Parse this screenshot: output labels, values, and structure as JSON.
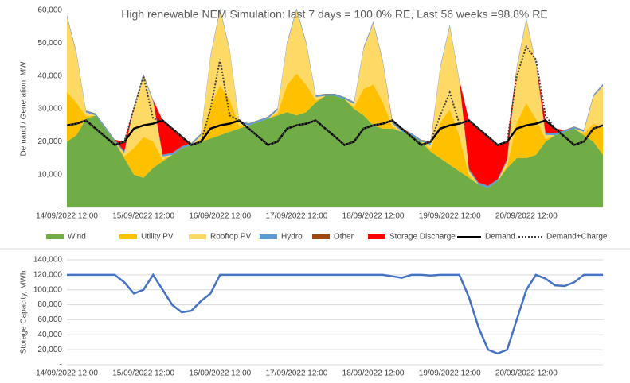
{
  "chart_data": [
    {
      "type": "area",
      "title": "High renewable NEM Simulation: last 7 days = 100.0% RE, Last 56 weeks =98.8% RE",
      "y_label": "Demand / Generation, MW",
      "categories": [
        "14/09/2022 12:00",
        null,
        null,
        null,
        null,
        null,
        null,
        null,
        "15/09/2022 12:00",
        null,
        null,
        null,
        null,
        null,
        null,
        null,
        "16/09/2022 12:00",
        null,
        null,
        null,
        null,
        null,
        null,
        null,
        "17/09/2022 12:00",
        null,
        null,
        null,
        null,
        null,
        null,
        null,
        "18/09/2022 12:00",
        null,
        null,
        null,
        null,
        null,
        null,
        null,
        "19/09/2022 12:00",
        null,
        null,
        null,
        null,
        null,
        null,
        null,
        "20/09/2022 12:00",
        null,
        null,
        null,
        null,
        null,
        null,
        null,
        null
      ],
      "ylim": [
        0,
        60000
      ],
      "yticks": [
        {
          "value": 0,
          "label": "-"
        },
        {
          "value": 10000,
          "label": "10,000"
        },
        {
          "value": 20000,
          "label": "20,000"
        },
        {
          "value": 30000,
          "label": "30,000"
        },
        {
          "value": 40000,
          "label": "40,000"
        },
        {
          "value": 50000,
          "label": "50,000"
        },
        {
          "value": 60000,
          "label": "60,000"
        }
      ],
      "grid": false,
      "series": [
        {
          "name": "Wind",
          "type": "area",
          "color": "#70ad47",
          "values": [
            20000,
            22000,
            27000,
            28000,
            24000,
            20000,
            15000,
            10000,
            9000,
            12000,
            14000,
            16000,
            18000,
            19000,
            20000,
            21000,
            22000,
            23000,
            24000,
            25000,
            26000,
            27000,
            28000,
            29000,
            28000,
            29000,
            32000,
            34000,
            34000,
            33000,
            30000,
            28000,
            25000,
            24000,
            24000,
            23000,
            22000,
            20000,
            17000,
            15000,
            13000,
            11000,
            9000,
            7000,
            6000,
            8000,
            12000,
            15000,
            15000,
            16000,
            20000,
            22000,
            23000,
            24000,
            22000,
            20000,
            16000
          ]
        },
        {
          "name": "Utility PV",
          "type": "area",
          "color": "#ffc000",
          "values": [
            15200,
            9900,
            800,
            0,
            0,
            0,
            600,
            8100,
            12400,
            8100,
            600,
            0,
            0,
            0,
            800,
            9900,
            15200,
            9900,
            800,
            0,
            0,
            0,
            600,
            8300,
            12800,
            8300,
            600,
            0,
            0,
            0,
            600,
            8100,
            12400,
            8100,
            600,
            0,
            0,
            0,
            800,
            10900,
            16800,
            10900,
            800,
            0,
            0,
            0,
            800,
            10900,
            16800,
            10900,
            800,
            0,
            0,
            0,
            400,
            5500,
            8400
          ]
        },
        {
          "name": "Rooftop PV",
          "type": "area",
          "color": "#ffd966",
          "values": [
            22800,
            14800,
            1100,
            0,
            0,
            0,
            900,
            12100,
            18600,
            12100,
            900,
            0,
            0,
            0,
            1100,
            14800,
            22800,
            14800,
            1100,
            0,
            0,
            0,
            1000,
            12500,
            19200,
            12500,
            1000,
            0,
            0,
            0,
            900,
            12100,
            18600,
            12100,
            900,
            0,
            0,
            0,
            1300,
            16400,
            25200,
            16400,
            1300,
            0,
            0,
            0,
            1300,
            16400,
            25200,
            16400,
            1300,
            0,
            0,
            0,
            600,
            8200,
            12600
          ]
        },
        {
          "name": "Hydro",
          "type": "area",
          "color": "#5b9bd5",
          "values": [
            500,
            500,
            500,
            500,
            500,
            500,
            500,
            500,
            500,
            500,
            500,
            500,
            500,
            500,
            500,
            500,
            500,
            500,
            500,
            500,
            500,
            500,
            500,
            500,
            500,
            500,
            500,
            500,
            500,
            500,
            500,
            500,
            500,
            500,
            500,
            500,
            500,
            500,
            500,
            500,
            500,
            500,
            500,
            500,
            500,
            500,
            500,
            500,
            500,
            500,
            500,
            500,
            500,
            500,
            500,
            500,
            500
          ]
        },
        {
          "name": "Other",
          "type": "area",
          "color": "#9e480e",
          "values": [
            100,
            100,
            100,
            100,
            100,
            100,
            100,
            100,
            100,
            100,
            100,
            100,
            100,
            100,
            100,
            100,
            100,
            100,
            100,
            100,
            100,
            100,
            100,
            100,
            100,
            100,
            100,
            100,
            100,
            100,
            100,
            100,
            100,
            100,
            100,
            100,
            100,
            100,
            100,
            100,
            100,
            100,
            100,
            100,
            100,
            100,
            100,
            100,
            100,
            100,
            100,
            100,
            100,
            100,
            100,
            100,
            100
          ]
        },
        {
          "name": "Storage Discharge",
          "type": "area",
          "color": "#ff0000",
          "values": [
            0,
            0,
            0,
            0,
            0,
            0,
            2900,
            0,
            0,
            0,
            10400,
            7400,
            2900,
            0,
            0,
            0,
            0,
            0,
            0,
            0,
            0,
            0,
            0,
            0,
            0,
            0,
            0,
            0,
            0,
            0,
            0,
            0,
            0,
            0,
            400,
            400,
            0,
            0,
            300,
            0,
            0,
            0,
            14800,
            16400,
            14900,
            10400,
            5300,
            0,
            0,
            0,
            3800,
            1400,
            0,
            0,
            0,
            0,
            0
          ]
        },
        {
          "name": "Demand",
          "type": "line",
          "color": "#000000",
          "values": [
            25000,
            25500,
            26500,
            24000,
            21500,
            19000,
            20000,
            24000,
            25000,
            25500,
            26500,
            24000,
            21500,
            19000,
            20000,
            24000,
            25000,
            25500,
            26500,
            24000,
            21500,
            19000,
            20000,
            24000,
            25000,
            25500,
            26500,
            24000,
            21500,
            19000,
            20000,
            24000,
            25000,
            25500,
            26500,
            24000,
            21500,
            19000,
            20000,
            24000,
            25000,
            25500,
            26500,
            24000,
            21500,
            19000,
            20000,
            24000,
            25000,
            25500,
            26500,
            24000,
            21500,
            19000,
            20000,
            24000,
            25000
          ]
        },
        {
          "name": "Demand+Charge",
          "type": "line",
          "dash": "dotted",
          "color": "#404040",
          "values": [
            25000,
            25500,
            26500,
            24000,
            21500,
            19000,
            20000,
            30000,
            40000,
            27000,
            26500,
            24000,
            21500,
            19000,
            20000,
            30000,
            45000,
            28000,
            26500,
            24000,
            21500,
            19000,
            20000,
            24000,
            25000,
            25500,
            26500,
            24000,
            21500,
            19000,
            20000,
            24000,
            25000,
            25500,
            26500,
            24000,
            21500,
            19000,
            20000,
            28000,
            35000,
            25500,
            26500,
            24000,
            21500,
            19000,
            20000,
            40000,
            49000,
            45000,
            28000,
            24000,
            21500,
            19000,
            20000,
            24000,
            25000
          ]
        }
      ]
    },
    {
      "type": "line",
      "y_label": "Storage Capacity, MWh",
      "categories": [
        "14/09/2022 12:00",
        null,
        null,
        null,
        null,
        null,
        null,
        null,
        "15/09/2022 12:00",
        null,
        null,
        null,
        null,
        null,
        null,
        null,
        "16/09/2022 12:00",
        null,
        null,
        null,
        null,
        null,
        null,
        null,
        "17/09/2022 12:00",
        null,
        null,
        null,
        null,
        null,
        null,
        null,
        "18/09/2022 12:00",
        null,
        null,
        null,
        null,
        null,
        null,
        null,
        "19/09/2022 12:00",
        null,
        null,
        null,
        null,
        null,
        null,
        null,
        "20/09/2022 12:00",
        null,
        null,
        null,
        null,
        null,
        null,
        null,
        null
      ],
      "ylim": [
        0,
        140000
      ],
      "yticks": [
        {
          "value": 0,
          "label": "-"
        },
        {
          "value": 20000,
          "label": "20,000"
        },
        {
          "value": 40000,
          "label": "40,000"
        },
        {
          "value": 60000,
          "label": "60,000"
        },
        {
          "value": 80000,
          "label": "80,000"
        },
        {
          "value": 100000,
          "label": "100,000"
        },
        {
          "value": 120000,
          "label": "120,000"
        },
        {
          "value": 140000,
          "label": "140,000"
        }
      ],
      "grid": true,
      "color": "#4472c4",
      "values": [
        120000,
        120000,
        120000,
        120000,
        120000,
        120000,
        110000,
        95000,
        100000,
        120000,
        100000,
        80000,
        70000,
        72000,
        85000,
        95000,
        120000,
        120000,
        120000,
        120000,
        120000,
        120000,
        120000,
        120000,
        120000,
        120000,
        120000,
        120000,
        120000,
        120000,
        120000,
        120000,
        120000,
        120000,
        118000,
        116000,
        120000,
        120000,
        119000,
        120000,
        120000,
        120000,
        90000,
        50000,
        20000,
        15000,
        20000,
        60000,
        100000,
        120000,
        115000,
        106000,
        105000,
        110000,
        120000,
        120000,
        120000
      ]
    }
  ]
}
